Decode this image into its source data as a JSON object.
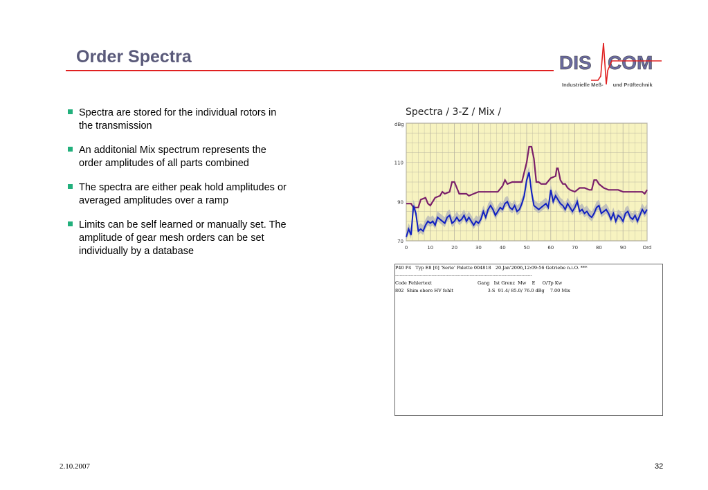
{
  "slide": {
    "title": "Order Spectra",
    "date": "2.10.2007",
    "page_number": "32"
  },
  "logo": {
    "left_text": "DIS",
    "right_text": "COM",
    "tagline_left": "Industrielle Meß-",
    "tagline_right": "und Prüftechnik",
    "colors": {
      "text": "#6a6aa0",
      "pulse": "#e02020"
    }
  },
  "bullets": [
    "Spectra are stored for the individual rotors in the transmission",
    "An additonial Mix spectrum represents the order amplitudes of all parts combined",
    "The spectra are either peak hold amplitudes or averaged amplitudes over a ramp",
    "Limits can be self learned or manually set. The amplitude of gear mesh orders can be set individually by a database"
  ],
  "chart_data": {
    "type": "line",
    "title": "Spectra / 3-Z / Mix /",
    "ylabel": "dBg",
    "xlabel": "",
    "x_ticks": [
      "0",
      "10",
      "20",
      "30",
      "40",
      "50",
      "60",
      "70",
      "80",
      "90",
      "Ord"
    ],
    "y_ticks": [
      "70",
      "90",
      "110"
    ],
    "xlim": [
      0,
      100
    ],
    "ylim": [
      70,
      130
    ],
    "grid": true,
    "colors": {
      "background": "#f7f3c0",
      "grid": "#b8b4a0",
      "limit": "#7a1f6a",
      "spectrum": "#1020c0",
      "band": "#b8b8b8"
    },
    "series": [
      {
        "x": [
          0,
          2,
          3,
          5,
          6,
          8,
          9,
          10,
          12,
          14,
          15,
          16,
          18,
          19,
          20,
          22,
          24,
          25,
          26,
          28,
          30,
          32,
          34,
          36,
          38,
          40,
          41,
          42,
          44,
          46,
          47,
          48,
          50,
          51,
          52,
          53,
          54,
          55,
          56,
          58,
          60,
          62,
          62.5,
          63,
          64,
          65,
          66,
          67,
          68,
          70,
          72,
          74,
          76,
          77,
          78,
          79,
          80,
          82,
          84,
          86,
          88,
          90,
          92,
          94,
          96,
          98,
          99,
          100
        ],
        "values": [
          89,
          89,
          87,
          87,
          91,
          92,
          89,
          88,
          92,
          93,
          95,
          94,
          95,
          100,
          100,
          94,
          94,
          94,
          93,
          94,
          95,
          95,
          95,
          95,
          95,
          98,
          101,
          99,
          100,
          100,
          100,
          100,
          110,
          118,
          118,
          112,
          100,
          100,
          99,
          99,
          102,
          103,
          107,
          107,
          101,
          99,
          99,
          97,
          96,
          95,
          97,
          97,
          96,
          96,
          101,
          101,
          99,
          97,
          96,
          96,
          96,
          95,
          95,
          95,
          95,
          95,
          94,
          96
        ]
      },
      {
        "x": [
          0,
          1,
          2,
          3,
          4,
          5,
          6,
          7,
          8,
          9,
          10,
          11,
          12,
          13,
          14,
          15,
          16,
          17,
          18,
          19,
          20,
          21,
          22,
          23,
          24,
          25,
          26,
          27,
          28,
          29,
          30,
          31,
          32,
          33,
          34,
          35,
          36,
          37,
          38,
          39,
          40,
          41,
          42,
          43,
          44,
          45,
          46,
          47,
          48,
          49,
          50,
          51,
          52,
          53,
          54,
          55,
          56,
          57,
          58,
          59,
          60,
          61,
          62,
          63,
          64,
          65,
          66,
          67,
          68,
          69,
          70,
          71,
          72,
          73,
          74,
          75,
          76,
          77,
          78,
          79,
          80,
          81,
          82,
          83,
          84,
          85,
          86,
          87,
          88,
          89,
          90,
          91,
          92,
          93,
          94,
          95,
          96,
          97,
          98,
          99,
          100
        ],
        "values": [
          72,
          76,
          73,
          88,
          84,
          75,
          76,
          75,
          78,
          80,
          79,
          80,
          78,
          82,
          81,
          80,
          79,
          82,
          83,
          79,
          80,
          82,
          80,
          81,
          83,
          80,
          82,
          80,
          78,
          80,
          79,
          81,
          85,
          82,
          86,
          88,
          86,
          83,
          85,
          87,
          86,
          89,
          90,
          87,
          86,
          88,
          85,
          86,
          89,
          93,
          101,
          105,
          95,
          88,
          87,
          86,
          87,
          88,
          89,
          87,
          96,
          90,
          93,
          91,
          89,
          88,
          86,
          89,
          87,
          85,
          87,
          90,
          85,
          86,
          84,
          85,
          83,
          82,
          84,
          87,
          88,
          84,
          85,
          86,
          84,
          81,
          84,
          80,
          83,
          82,
          80,
          84,
          85,
          82,
          81,
          83,
          80,
          83,
          86,
          84,
          86
        ]
      }
    ]
  },
  "log": {
    "lines": [
      "P40 P4   Typ E8 [6] 'Serie' Palette 004818   20.Jan'2006,12:09:56 Getriebe n.i.O. ***",
      "------------------------------------------------------------------------------------------",
      "Code Fehlertext                                Gang   Ist Grenz  Mw    E     O/Tp Kw",
      "802  Shim obere HV fehlt                        3-S  91.4/ 85.0/ 76.0 dBg    7.00 Mix"
    ]
  }
}
